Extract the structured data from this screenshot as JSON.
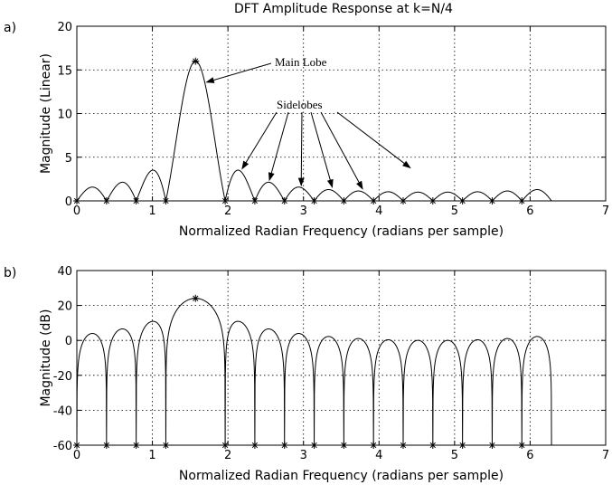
{
  "title": "DFT Amplitude Response at k=N/4",
  "panel_labels": [
    "a)",
    "b)"
  ],
  "annotations": {
    "main_lobe": "Main Lobe",
    "sidelobes": "Sidelobes"
  },
  "chart_data": [
    {
      "type": "line",
      "panel": "a)",
      "title": "DFT Amplitude Response at k=N/4",
      "xlabel": "Normalized Radian Frequency (radians per sample)",
      "ylabel": "Magnitude (Linear)",
      "xlim": [
        0,
        7
      ],
      "ylim": [
        0,
        20
      ],
      "xticks": [
        0,
        1,
        2,
        3,
        4,
        5,
        6,
        7
      ],
      "yticks": [
        0,
        5,
        10,
        15,
        20
      ],
      "grid": true,
      "curve": "abs(sin(16*(w - pi/2)/2) / sin((w - pi/2)/2)), N = 16, w in [0, 2*pi]",
      "n_points": 16,
      "peak": {
        "x": 1.5708,
        "y": 16
      },
      "zeros_x": [
        0,
        0.3927,
        0.7854,
        1.1781,
        1.9635,
        2.3562,
        2.7489,
        3.1416,
        3.5343,
        3.927,
        4.3197,
        4.7124,
        5.1051,
        5.4978,
        5.8905
      ],
      "sidelobe_peaks": [
        {
          "x": 0.196,
          "y": 1.02
        },
        {
          "x": 0.589,
          "y": 1.26
        },
        {
          "x": 0.982,
          "y": 3.41
        },
        {
          "x": 2.16,
          "y": 3.41
        },
        {
          "x": 2.553,
          "y": 2.08
        },
        {
          "x": 2.945,
          "y": 1.53
        },
        {
          "x": 3.338,
          "y": 1.26
        },
        {
          "x": 3.731,
          "y": 1.11
        },
        {
          "x": 4.124,
          "y": 1.03
        },
        {
          "x": 4.516,
          "y": 1.0
        },
        {
          "x": 4.909,
          "y": 1.03
        },
        {
          "x": 5.302,
          "y": 1.11
        },
        {
          "x": 5.694,
          "y": 1.26
        },
        {
          "x": 6.087,
          "y": 1.53
        }
      ]
    },
    {
      "type": "line",
      "panel": "b)",
      "xlabel": "Normalized Radian Frequency (radians per sample)",
      "ylabel": "Magnitude (dB)",
      "xlim": [
        0,
        7
      ],
      "ylim": [
        -60,
        40
      ],
      "xticks": [
        0,
        1,
        2,
        3,
        4,
        5,
        6,
        7
      ],
      "yticks": [
        -60,
        -40,
        -20,
        0,
        20,
        40
      ],
      "grid": true,
      "curve": "20*log10 of panel a) magnitude, clipped at -60 dB",
      "peak": {
        "x": 1.5708,
        "y": 24.08
      },
      "zeros_x": [
        0,
        0.3927,
        0.7854,
        1.1781,
        1.9635,
        2.3562,
        2.7489,
        3.1416,
        3.5343,
        3.927,
        4.3197,
        4.7124,
        5.1051,
        5.4978,
        5.8905
      ]
    }
  ]
}
